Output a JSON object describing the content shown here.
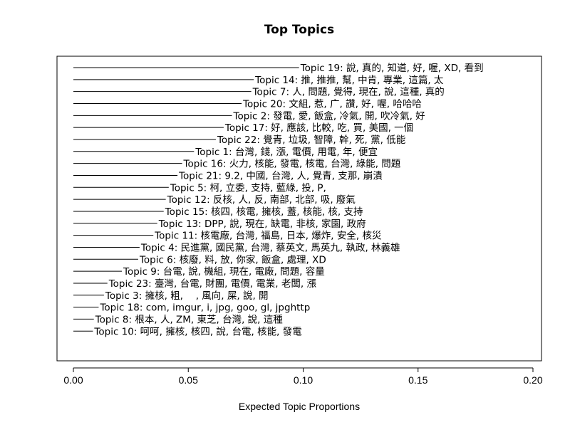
{
  "chart_data": {
    "type": "bar",
    "orientation": "horizontal",
    "title": "Top Topics",
    "subtitle": "",
    "xlabel": "Expected Topic Proportions",
    "ylabel": "",
    "xlim": [
      0,
      0.2
    ],
    "xticks": [
      0.0,
      0.05,
      0.1,
      0.15,
      0.2
    ],
    "xtick_labels": [
      "0.00",
      "0.05",
      "0.10",
      "0.15",
      "0.20"
    ],
    "grid": false,
    "legend": "none",
    "categories": [
      "Topic 19: 說, 真的, 知道, 好, 喔, XD, 看到",
      "Topic 14: 推, 推推, 幫, 中肯, 專業, 這篇, 太",
      "Topic 7: 人, 問題, 覺得, 現在, 說, 這種, 真的",
      "Topic 20: 文組, 惹, 广, 讚, 好, 喔, 哈哈哈",
      "Topic 2: 發電, 愛, 飯盒, 冷氣, 開, 吹冷氣, 好",
      "Topic 17: 好, 應該, 比較, 吃, 買, 美國, 一個",
      "Topic 22: 覺青, 垃圾, 智障, 幹, 死, 黨, 低能",
      "Topic 1: 台灣, 錢, 漲, 電價, 用電, 年, 便宜",
      "Topic 16: 火力, 核能, 發電, 核電, 台灣, 綠能, 問題",
      "Topic 21: 9.2, 中國, 台灣, 人, 覺青, 支那, 崩潰",
      "Topic 5: 柯, 立委, 支持, 藍綠, 投, P,",
      "Topic 12: 反核, 人, 反, 南部, 北部, 吸, 廢氣",
      "Topic 15: 核四, 核電, 擁核, 蓋, 核能, 核, 支持",
      "Topic 13: DPP, 說, 現在, 缺電, 非核, 家園, 政府",
      "Topic 11: 核電廠, 台灣, 福島, 日本, 爆炸, 安全, 核災",
      "Topic 4: 民進黨, 國民黨, 台灣, 蔡英文, 馬英九, 執政, 林義雄",
      "Topic 6: 核廢, 料, 放, 你家, 飯盒, 處理, XD",
      "Topic 9: 台電, 說, 機組, 現在, 電廠, 問題, 容量",
      "Topic 23: 臺灣, 台電, 財團, 電價, 電業, 老闆, 漲",
      "Topic 3: 擁核, 粗, 　, 風向, 屎, 說, 開",
      "Topic 18: com, imgur, i, jpg, goo, gl, jpghttp",
      "Topic 8: 根本, 人, ZM, 東芝, 台灣, 說, 這種",
      "Topic 10: 呵呵, 擁核, 核四, 說, 台電, 核能, 發電"
    ],
    "values": [
      0.0982,
      0.0785,
      0.0774,
      0.0732,
      0.069,
      0.0654,
      0.062,
      0.0525,
      0.0473,
      0.0453,
      0.0415,
      0.0402,
      0.0393,
      0.0365,
      0.0348,
      0.0288,
      0.0282,
      0.0211,
      0.0148,
      0.0133,
      0.011,
      0.0089,
      0.0085
    ]
  }
}
